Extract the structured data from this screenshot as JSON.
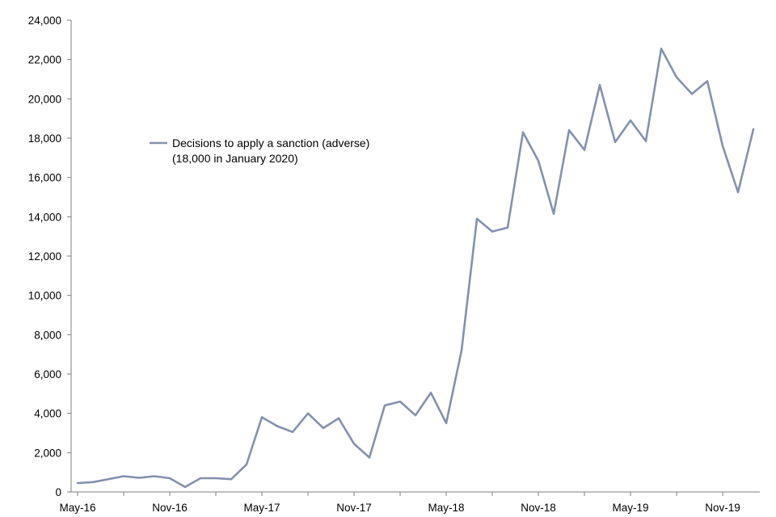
{
  "chart_data": {
    "type": "line",
    "title": "",
    "xlabel": "",
    "ylabel": "",
    "ylim": [
      0,
      24000
    ],
    "yticks": [
      0,
      2000,
      4000,
      6000,
      8000,
      10000,
      12000,
      14000,
      16000,
      18000,
      20000,
      22000,
      24000
    ],
    "ytick_labels": [
      "0",
      "2,000",
      "4,000",
      "6,000",
      "8,000",
      "10,000",
      "12,000",
      "14,000",
      "16,000",
      "18,000",
      "20,000",
      "22,000",
      "24,000"
    ],
    "x": [
      "2016-05",
      "2016-06",
      "2016-07",
      "2016-08",
      "2016-09",
      "2016-10",
      "2016-11",
      "2016-12",
      "2017-01",
      "2017-02",
      "2017-03",
      "2017-04",
      "2017-05",
      "2017-06",
      "2017-07",
      "2017-08",
      "2017-09",
      "2017-10",
      "2017-11",
      "2017-12",
      "2018-01",
      "2018-02",
      "2018-03",
      "2018-04",
      "2018-05",
      "2018-06",
      "2018-07",
      "2018-08",
      "2018-09",
      "2018-10",
      "2018-11",
      "2018-12",
      "2019-01",
      "2019-02",
      "2019-03",
      "2019-04",
      "2019-05",
      "2019-06",
      "2019-07",
      "2019-08",
      "2019-09",
      "2019-10",
      "2019-11",
      "2019-12",
      "2020-01"
    ],
    "xtick_labels": [
      "May-16",
      "Nov-16",
      "May-17",
      "Nov-17",
      "May-18",
      "Nov-18",
      "May-19",
      "Nov-19"
    ],
    "grid": false,
    "legend": "upper-left",
    "legend_label": "Decisions to apply a sanction (adverse)",
    "legend_note": "(18,000 in January 2020)",
    "line_color": "#8491ae",
    "series": [
      {
        "name": "Decisions to apply a sanction (adverse)",
        "values": [
          450,
          500,
          650,
          800,
          720,
          800,
          700,
          250,
          700,
          700,
          650,
          1400,
          3800,
          3350,
          3050,
          4000,
          3250,
          3750,
          2450,
          1750,
          4400,
          4600,
          3900,
          5050,
          3500,
          7200,
          13900,
          13250,
          13450,
          18300,
          16850,
          14150,
          18400,
          17400,
          20700,
          17800,
          18900,
          17850,
          22550,
          21100,
          20250,
          20900,
          17600,
          15250,
          18450
        ]
      }
    ]
  }
}
